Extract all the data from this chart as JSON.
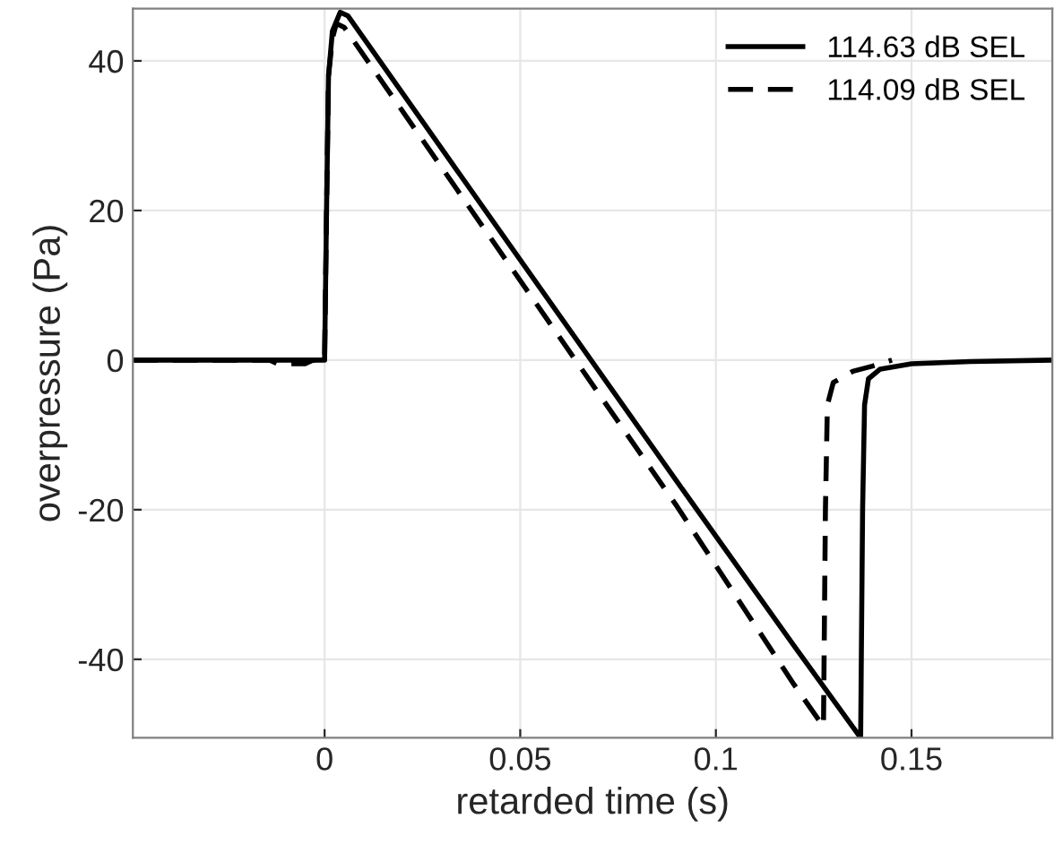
{
  "chart_data": {
    "type": "line",
    "xlabel": "retarded time (s)",
    "ylabel": "overpressure (Pa)",
    "xlim": [
      -0.049,
      0.186
    ],
    "ylim": [
      -50.5,
      47
    ],
    "xticks": [
      0,
      0.05,
      0.1,
      0.15
    ],
    "yticks": [
      -40,
      -20,
      0,
      20,
      40
    ],
    "grid": true,
    "legend": "top right",
    "marker": "none",
    "series": [
      {
        "name": "114.63 dB SEL",
        "color": "#000000",
        "line_style": "solid",
        "x": [
          -0.049,
          0.0,
          0.0005,
          0.001,
          0.002,
          0.004,
          0.006,
          0.03,
          0.06,
          0.09,
          0.12,
          0.137,
          0.1375,
          0.138,
          0.139,
          0.142,
          0.15,
          0.165,
          0.186
        ],
        "values": [
          0,
          0,
          20,
          38,
          44,
          46.5,
          46,
          28.2,
          6,
          -16.2,
          -38.2,
          -50.5,
          -20,
          -6,
          -2.5,
          -1.2,
          -0.5,
          -0.2,
          0
        ]
      },
      {
        "name": "114.09 dB SEL",
        "color": "#000000",
        "line_style": "dashed",
        "x": [
          -0.049,
          -0.014,
          -0.012,
          -0.005,
          -0.003,
          0.0,
          0.0005,
          0.001,
          0.002,
          0.003,
          0.005,
          0.03,
          0.06,
          0.09,
          0.12,
          0.1275,
          0.128,
          0.1285,
          0.13,
          0.135,
          0.14,
          0.145
        ],
        "values": [
          0,
          0,
          -0.5,
          -0.5,
          0,
          0,
          20,
          38,
          43,
          45,
          44.5,
          25.7,
          3.1,
          -19.5,
          -43.4,
          -49,
          -20,
          -6,
          -3,
          -1.5,
          -0.8,
          0
        ]
      }
    ]
  }
}
